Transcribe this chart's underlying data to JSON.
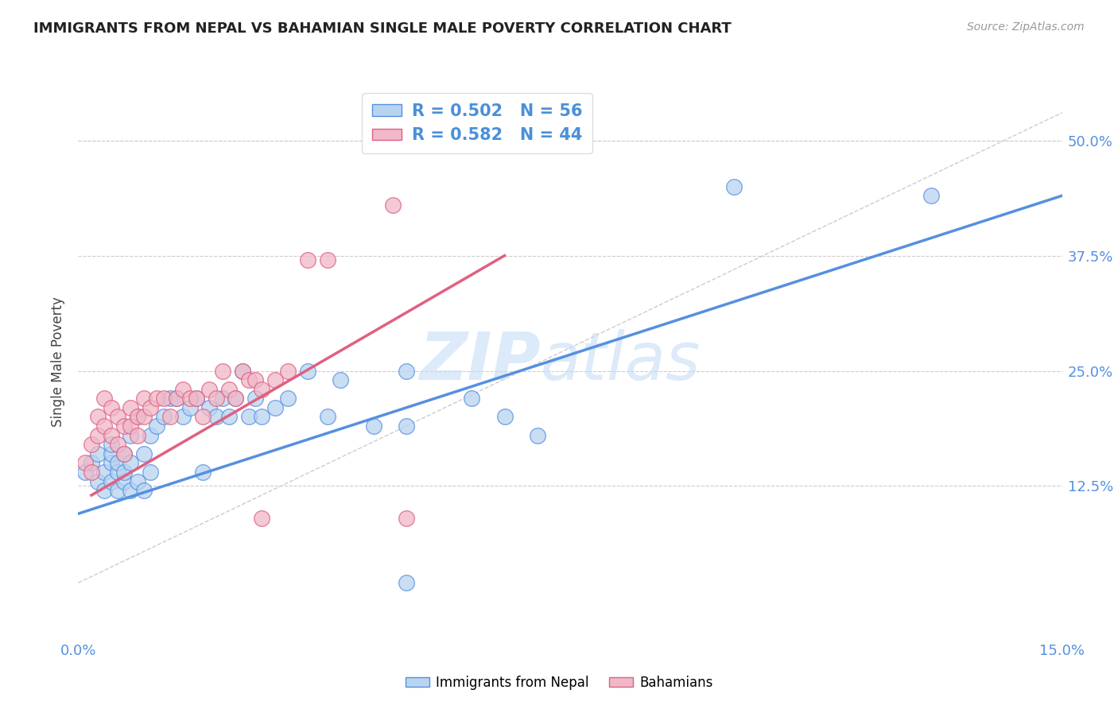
{
  "title": "IMMIGRANTS FROM NEPAL VS BAHAMIAN SINGLE MALE POVERTY CORRELATION CHART",
  "source": "Source: ZipAtlas.com",
  "ylabel": "Single Male Poverty",
  "xlim": [
    0.0,
    0.15
  ],
  "ylim": [
    -0.04,
    0.56
  ],
  "ytick_positions": [
    0.125,
    0.25,
    0.375,
    0.5
  ],
  "ytick_labels": [
    "12.5%",
    "25.0%",
    "37.5%",
    "50.0%"
  ],
  "legend_r1": "R = 0.502   N = 56",
  "legend_r2": "R = 0.582   N = 44",
  "color_blue_fill": "#b8d4f0",
  "color_pink_fill": "#f0b8c8",
  "color_blue_line": "#5590e0",
  "color_pink_line": "#e06080",
  "color_tick": "#5590e0",
  "watermark_zip": "ZIP",
  "watermark_atlas": "atlas",
  "blue_scatter_x": [
    0.001,
    0.002,
    0.003,
    0.003,
    0.004,
    0.004,
    0.005,
    0.005,
    0.005,
    0.005,
    0.006,
    0.006,
    0.006,
    0.007,
    0.007,
    0.007,
    0.008,
    0.008,
    0.008,
    0.009,
    0.009,
    0.01,
    0.01,
    0.011,
    0.011,
    0.012,
    0.013,
    0.014,
    0.015,
    0.016,
    0.017,
    0.018,
    0.019,
    0.02,
    0.021,
    0.022,
    0.023,
    0.024,
    0.025,
    0.026,
    0.027,
    0.028,
    0.03,
    0.032,
    0.035,
    0.038,
    0.04,
    0.045,
    0.05,
    0.06,
    0.065,
    0.07,
    0.05,
    0.1,
    0.13,
    0.05
  ],
  "blue_scatter_y": [
    0.14,
    0.15,
    0.13,
    0.16,
    0.12,
    0.14,
    0.15,
    0.16,
    0.13,
    0.17,
    0.14,
    0.15,
    0.12,
    0.16,
    0.13,
    0.14,
    0.15,
    0.18,
    0.12,
    0.2,
    0.13,
    0.16,
    0.12,
    0.18,
    0.14,
    0.19,
    0.2,
    0.22,
    0.22,
    0.2,
    0.21,
    0.22,
    0.14,
    0.21,
    0.2,
    0.22,
    0.2,
    0.22,
    0.25,
    0.2,
    0.22,
    0.2,
    0.21,
    0.22,
    0.25,
    0.2,
    0.24,
    0.19,
    0.25,
    0.22,
    0.2,
    0.18,
    0.19,
    0.45,
    0.44,
    0.02
  ],
  "pink_scatter_x": [
    0.001,
    0.002,
    0.002,
    0.003,
    0.003,
    0.004,
    0.004,
    0.005,
    0.005,
    0.006,
    0.006,
    0.007,
    0.007,
    0.008,
    0.008,
    0.009,
    0.009,
    0.01,
    0.01,
    0.011,
    0.012,
    0.013,
    0.014,
    0.015,
    0.016,
    0.017,
    0.018,
    0.019,
    0.02,
    0.021,
    0.022,
    0.023,
    0.024,
    0.025,
    0.026,
    0.027,
    0.028,
    0.03,
    0.032,
    0.035,
    0.038,
    0.048,
    0.028,
    0.05
  ],
  "pink_scatter_y": [
    0.15,
    0.17,
    0.14,
    0.2,
    0.18,
    0.22,
    0.19,
    0.21,
    0.18,
    0.2,
    0.17,
    0.19,
    0.16,
    0.21,
    0.19,
    0.2,
    0.18,
    0.22,
    0.2,
    0.21,
    0.22,
    0.22,
    0.2,
    0.22,
    0.23,
    0.22,
    0.22,
    0.2,
    0.23,
    0.22,
    0.25,
    0.23,
    0.22,
    0.25,
    0.24,
    0.24,
    0.23,
    0.24,
    0.25,
    0.37,
    0.37,
    0.43,
    0.09,
    0.09
  ],
  "blue_line_x": [
    0.0,
    0.15
  ],
  "blue_line_y": [
    0.095,
    0.44
  ],
  "pink_line_x": [
    0.002,
    0.065
  ],
  "pink_line_y": [
    0.115,
    0.375
  ],
  "diag_line_x": [
    0.0,
    0.15
  ],
  "diag_line_y": [
    0.02,
    0.53
  ]
}
